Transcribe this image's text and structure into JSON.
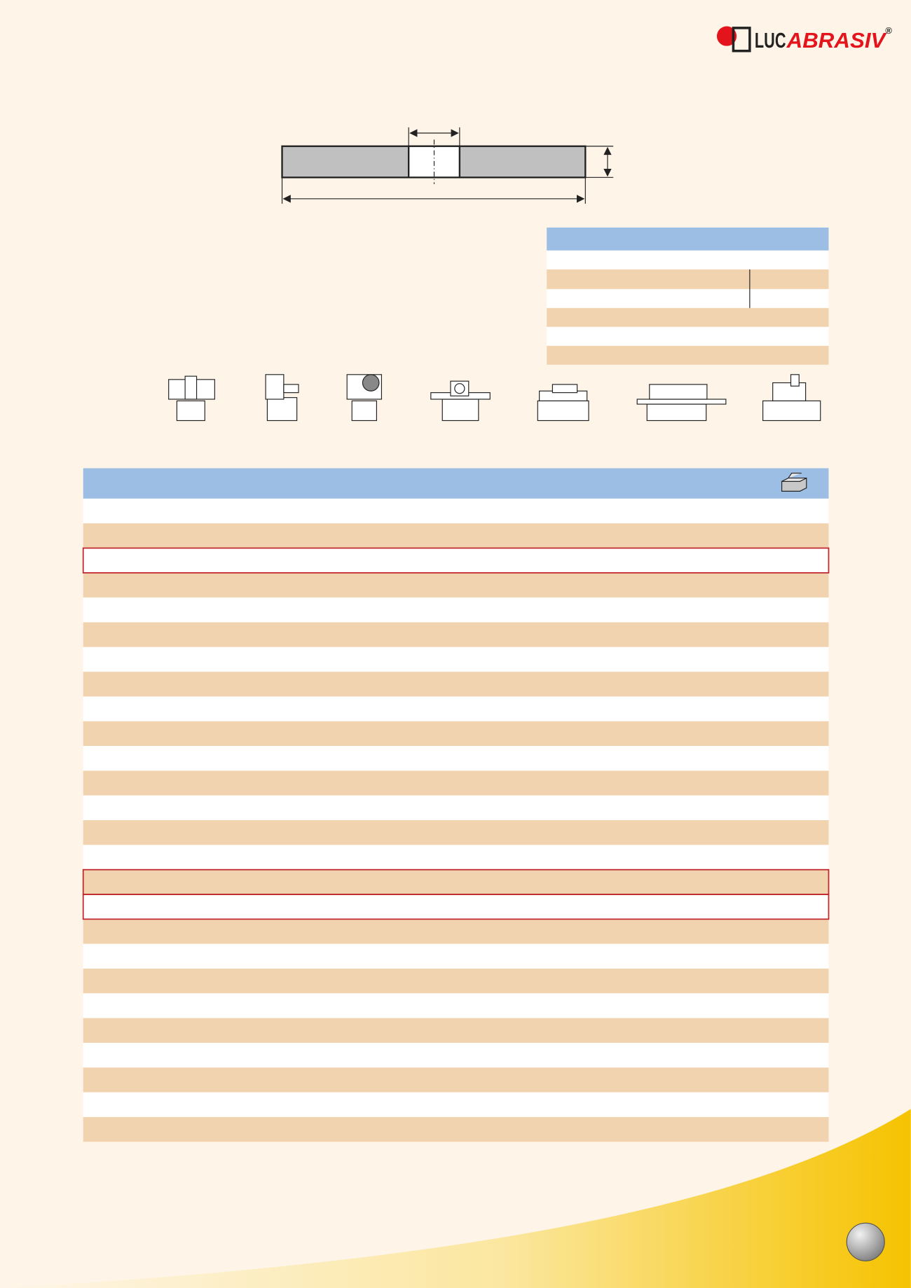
{
  "logo": {
    "brand": "LUC",
    "product": "ABRASIV",
    "mark": "®"
  }
}
